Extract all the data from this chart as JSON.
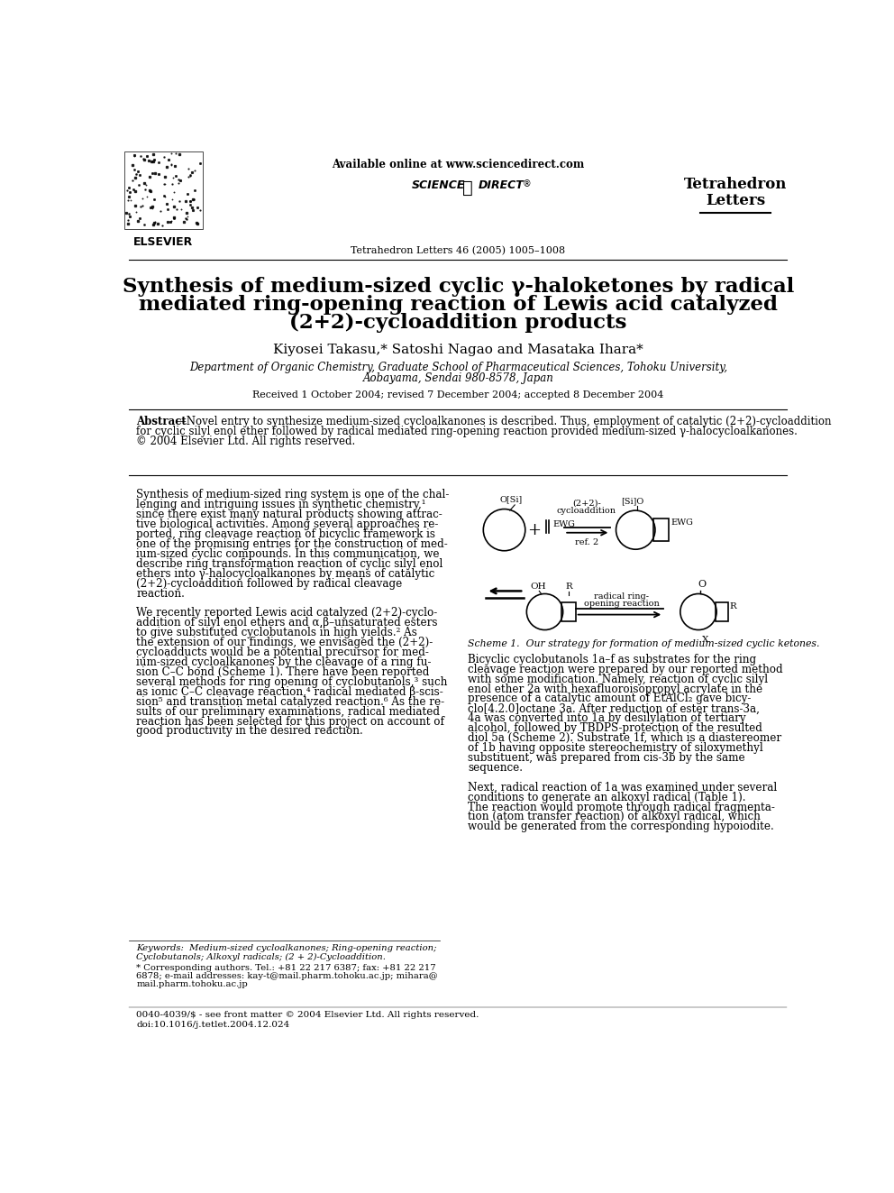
{
  "bg_color": "#ffffff",
  "title_line1": "Synthesis of medium-sized cyclic γ-haloketones by radical",
  "title_line2": "mediated ring-opening reaction of Lewis acid catalyzed",
  "title_line3": "(2+2)-cycloaddition products",
  "authors": "Kiyosei Takasu,* Satoshi Nagao and Masataka Ihara*",
  "affiliation1": "Department of Organic Chemistry, Graduate School of Pharmaceutical Sciences, Tohoku University,",
  "affiliation2": "Aobayama, Sendai 980-8578, Japan",
  "received": "Received 1 October 2004; revised 7 December 2004; accepted 8 December 2004",
  "journal_name1": "Tetrahedron",
  "journal_name2": "Letters",
  "journal_info": "Tetrahedron Letters 46 (2005) 1005–1008",
  "available_online": "Available online at www.sciencedirect.com",
  "elsevier_text": "ELSEVIER",
  "abstract_title": "Abstract",
  "scheme1_caption": "Scheme 1.  Our strategy for formation of medium-sized cyclic ketones.",
  "keywords": "Keywords:  Medium-sized cycloalkanones; Ring-opening reaction; Cyclobutanols; Alkoxyl radicals; (2 + 2)-Cycloaddition.",
  "doi_text": "0040-4039/$ - see front matter © 2004 Elsevier Ltd. All rights reserved.\ndoi:10.1016/j.tetlet.2004.12.024"
}
